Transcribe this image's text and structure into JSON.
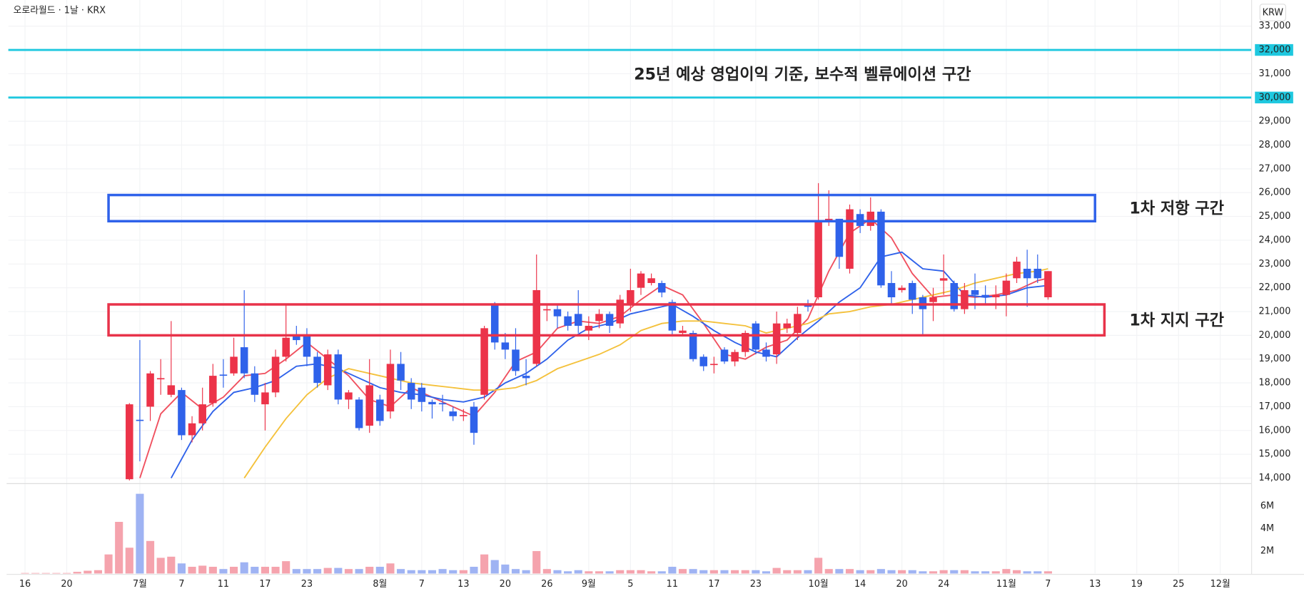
{
  "chart_data": {
    "type": "candlestick",
    "title": "오로라월드 · 1날 · KRX",
    "currency": "KRW",
    "up_color": "#ec3349",
    "down_color": "#2f62ea",
    "volume_up_color": "#f5a3ad",
    "volume_down_color": "#9fb3f3",
    "grid": true,
    "xlim": [
      -1.6,
      117.5
    ],
    "xticks": [
      {
        "value": 0,
        "label": "16"
      },
      {
        "value": 4,
        "label": "20"
      },
      {
        "value": 11,
        "label": "7월"
      },
      {
        "value": 15,
        "label": "7"
      },
      {
        "value": 19,
        "label": "11"
      },
      {
        "value": 23,
        "label": "17"
      },
      {
        "value": 27,
        "label": "23"
      },
      {
        "value": 34,
        "label": "8월"
      },
      {
        "value": 38,
        "label": "7"
      },
      {
        "value": 42,
        "label": "13"
      },
      {
        "value": 46,
        "label": "20"
      },
      {
        "value": 50,
        "label": "26"
      },
      {
        "value": 54,
        "label": "9월"
      },
      {
        "value": 58,
        "label": "5"
      },
      {
        "value": 62,
        "label": "11"
      },
      {
        "value": 66,
        "label": "17"
      },
      {
        "value": 70,
        "label": "23"
      },
      {
        "value": 76,
        "label": "10월"
      },
      {
        "value": 80,
        "label": "14"
      },
      {
        "value": 84,
        "label": "20"
      },
      {
        "value": 88,
        "label": "24"
      },
      {
        "value": 94,
        "label": "11월"
      },
      {
        "value": 98,
        "label": "7"
      },
      {
        "value": 102.5,
        "label": "13"
      },
      {
        "value": 106.5,
        "label": "19"
      },
      {
        "value": 110.5,
        "label": "25"
      },
      {
        "value": 114.5,
        "label": "12월"
      }
    ],
    "ylim": [
      13800,
      34100
    ],
    "yticks": [
      {
        "value": 14000,
        "label": "14,000"
      },
      {
        "value": 15000,
        "label": "15,000"
      },
      {
        "value": 16000,
        "label": "16,000"
      },
      {
        "value": 17000,
        "label": "17,000"
      },
      {
        "value": 18000,
        "label": "18,000"
      },
      {
        "value": 19000,
        "label": "19,000"
      },
      {
        "value": 20000,
        "label": "20,000"
      },
      {
        "value": 21000,
        "label": "21,000"
      },
      {
        "value": 22000,
        "label": "22,000"
      },
      {
        "value": 23000,
        "label": "23,000"
      },
      {
        "value": 24000,
        "label": "24,000"
      },
      {
        "value": 25000,
        "label": "25,000"
      },
      {
        "value": 26000,
        "label": "26,000"
      },
      {
        "value": 27000,
        "label": "27,000"
      },
      {
        "value": 28000,
        "label": "28,000"
      },
      {
        "value": 29000,
        "label": "29,000"
      },
      {
        "value": 31000,
        "label": "31,000"
      },
      {
        "value": 33000,
        "label": "33,000"
      }
    ],
    "candles": {
      "x": [
        10,
        11,
        12,
        13,
        14,
        15,
        16,
        17,
        18,
        19,
        20,
        21,
        22,
        23,
        24,
        25,
        26,
        27,
        28,
        29,
        30,
        31,
        32,
        33,
        34,
        35,
        36,
        37,
        38,
        39,
        40,
        41,
        42,
        43,
        44,
        45,
        46,
        47,
        48,
        49,
        50,
        51,
        52,
        53,
        54,
        55,
        56,
        57,
        58,
        59,
        60,
        61,
        62,
        63,
        64,
        65,
        66,
        67,
        68,
        69,
        70,
        71,
        72,
        73,
        74,
        75,
        76,
        77,
        78,
        79,
        80,
        81,
        82,
        83,
        84,
        85,
        86,
        87,
        88,
        89,
        90,
        91,
        92,
        93,
        94,
        95,
        96,
        97,
        98
      ],
      "open": [
        13950,
        16450,
        17000,
        18150,
        17500,
        17700,
        15800,
        16300,
        17150,
        18350,
        18400,
        19500,
        18400,
        17100,
        17600,
        19100,
        20000,
        20000,
        19100,
        17900,
        19200,
        17300,
        17300,
        16200,
        17300,
        16800,
        18800,
        18000,
        17800,
        17200,
        17150,
        16800,
        16600,
        17000,
        17500,
        21300,
        19700,
        19400,
        18300,
        18800,
        21050,
        21100,
        20800,
        20900,
        20200,
        20600,
        20900,
        20500,
        21300,
        22000,
        22200,
        22200,
        21400,
        20100,
        20100,
        19100,
        18750,
        19400,
        18900,
        19300,
        20500,
        19400,
        19200,
        20300,
        20100,
        21300,
        21600,
        24800,
        24900,
        22800,
        25100,
        24600,
        25200,
        22200,
        21900,
        22200,
        21600,
        21400,
        22300,
        22200,
        21100,
        21900,
        21700,
        21600,
        21700,
        22400,
        22800,
        22800,
        21600
      ],
      "high": [
        17150,
        19800,
        18500,
        19000,
        20600,
        17800,
        16600,
        17800,
        18800,
        19000,
        19900,
        21900,
        18700,
        18000,
        19400,
        21300,
        20400,
        20300,
        19300,
        19400,
        19400,
        17700,
        17400,
        19000,
        17500,
        19400,
        19300,
        18200,
        18000,
        17300,
        17500,
        17000,
        16900,
        17200,
        20400,
        21400,
        20100,
        20300,
        19000,
        23400,
        21300,
        21300,
        21000,
        21900,
        20800,
        21100,
        21000,
        21700,
        22800,
        22700,
        22600,
        22300,
        21500,
        20400,
        20200,
        19200,
        19100,
        19500,
        19400,
        20200,
        20600,
        19700,
        21000,
        20700,
        21200,
        21500,
        26400,
        26100,
        24900,
        25500,
        25300,
        25800,
        25300,
        22700,
        22100,
        22300,
        21700,
        22000,
        23400,
        22300,
        22200,
        22600,
        22100,
        22100,
        22600,
        23300,
        23600,
        23400,
        22700
      ],
      "low": [
        13900,
        14700,
        16400,
        17500,
        17400,
        15600,
        15500,
        16000,
        17000,
        17800,
        18300,
        18200,
        17200,
        16000,
        17400,
        18900,
        19600,
        18700,
        17800,
        17700,
        17100,
        16900,
        16000,
        15900,
        16200,
        16500,
        17700,
        16900,
        16800,
        16500,
        16800,
        16400,
        16400,
        15400,
        17300,
        19400,
        19000,
        18300,
        17900,
        18700,
        20600,
        20300,
        20200,
        20100,
        19800,
        20300,
        20100,
        20300,
        21000,
        21700,
        22100,
        21600,
        20000,
        20000,
        18900,
        18500,
        18400,
        18800,
        18700,
        19100,
        19200,
        18900,
        18800,
        20100,
        19800,
        21000,
        21500,
        24600,
        22800,
        22600,
        24300,
        24400,
        22000,
        21300,
        21800,
        20900,
        20000,
        20600,
        21700,
        21000,
        20900,
        21100,
        21300,
        21100,
        20800,
        22200,
        21200,
        22200,
        21500
      ],
      "close": [
        17100,
        16400,
        18400,
        18200,
        17900,
        15800,
        16300,
        17100,
        18300,
        18300,
        19100,
        18400,
        17500,
        17600,
        19100,
        19900,
        19800,
        19100,
        18000,
        19200,
        17300,
        17600,
        16100,
        17900,
        16400,
        18800,
        18100,
        17300,
        17200,
        17100,
        17100,
        16600,
        16650,
        15900,
        20300,
        19700,
        19400,
        18500,
        18200,
        21900,
        21100,
        20800,
        20400,
        20400,
        20400,
        20900,
        20400,
        21500,
        21900,
        22600,
        22400,
        21800,
        20200,
        20200,
        19000,
        18700,
        18800,
        18900,
        19300,
        20100,
        19400,
        19100,
        20500,
        20500,
        20900,
        21200,
        24800,
        24900,
        23300,
        25300,
        24600,
        25200,
        22100,
        21600,
        22000,
        21500,
        21100,
        21600,
        22400,
        21100,
        21900,
        21700,
        21600,
        21700,
        22300,
        23100,
        22400,
        22400,
        22700
      ]
    },
    "ma_lines": [
      {
        "color": "#f0505f",
        "x": [
          11,
          13,
          15,
          17,
          19,
          21,
          23,
          25,
          27,
          29,
          31,
          33,
          35,
          37,
          39,
          41,
          43,
          45,
          47,
          49,
          51,
          53,
          55,
          57,
          59,
          61,
          63,
          65,
          67,
          69,
          71,
          73,
          75,
          77,
          79,
          81,
          83,
          85,
          87,
          89,
          91,
          93,
          95,
          97,
          98
        ],
        "values": [
          14000,
          16700,
          17600,
          16900,
          17400,
          18300,
          18400,
          19000,
          19700,
          19000,
          18300,
          17300,
          17000,
          17800,
          17400,
          17000,
          16600,
          17600,
          18900,
          19300,
          20300,
          20600,
          20500,
          20800,
          21500,
          22100,
          21700,
          20500,
          19200,
          19000,
          19500,
          19800,
          20700,
          22700,
          24300,
          24900,
          24100,
          22600,
          21600,
          21700,
          21600,
          21700,
          21900,
          22300,
          22400
        ]
      },
      {
        "color": "#2f62ea",
        "x": [
          14,
          16,
          18,
          20,
          22,
          24,
          26,
          28,
          30,
          32,
          34,
          36,
          38,
          40,
          42,
          44,
          46,
          48,
          50,
          52,
          54,
          56,
          58,
          60,
          62,
          64,
          66,
          68,
          70,
          72,
          74,
          76,
          78,
          80,
          82,
          84,
          86,
          88,
          90,
          92,
          94,
          96,
          98
        ],
        "values": [
          14000,
          15600,
          16800,
          17600,
          17800,
          18100,
          18700,
          18800,
          18600,
          18200,
          17800,
          17600,
          17500,
          17300,
          17200,
          17400,
          18000,
          18400,
          19000,
          19800,
          20300,
          20500,
          20900,
          21100,
          21300,
          20800,
          20200,
          19700,
          19300,
          19100,
          19900,
          20600,
          21400,
          22000,
          23300,
          23500,
          22800,
          22700,
          21700,
          21600,
          21700,
          22000,
          22100
        ]
      },
      {
        "color": "#f4c13b",
        "x": [
          21,
          23,
          25,
          27,
          29,
          31,
          33,
          35,
          37,
          39,
          41,
          43,
          45,
          47,
          49,
          51,
          53,
          55,
          57,
          59,
          61,
          63,
          65,
          67,
          69,
          71,
          73,
          75,
          77,
          79,
          81,
          83,
          85,
          87,
          89,
          91,
          93,
          95,
          97,
          98
        ],
        "values": [
          14000,
          15300,
          16500,
          17500,
          18200,
          18600,
          18400,
          18200,
          18000,
          17900,
          17800,
          17700,
          17700,
          17800,
          18100,
          18600,
          18900,
          19200,
          19600,
          20200,
          20500,
          20600,
          20600,
          20500,
          20400,
          20100,
          20300,
          20500,
          20900,
          21000,
          21200,
          21300,
          21500,
          21700,
          21900,
          22200,
          22400,
          22600,
          22700,
          22800
        ]
      }
    ],
    "hlines": [
      {
        "value": 32000,
        "label": "32,000",
        "color": "#1ec8df"
      },
      {
        "value": 30000,
        "label": "30,000",
        "color": "#1ec8df"
      }
    ],
    "annotation": {
      "text": "25년 예상 영업이익 기준, 보수적 벨류에이션 구간",
      "color": "#1ec0d8"
    },
    "zones": [
      {
        "label": "1차 저항 구간",
        "color": "#2f62ea",
        "xlim": [
          8,
          102.5
        ],
        "ylim": [
          24800,
          25900
        ]
      },
      {
        "label": "1차 지지 구간",
        "color": "#e8334a",
        "xlim": [
          8,
          103.4
        ],
        "ylim": [
          20000,
          21300
        ]
      }
    ],
    "volume": {
      "ylim": [
        0,
        7930000
      ],
      "yticks": [
        {
          "value": 2000000,
          "label": "2M"
        },
        {
          "value": 4000000,
          "label": "4M"
        },
        {
          "value": 6000000,
          "label": "6M"
        }
      ],
      "x": [
        0,
        1,
        2,
        3,
        4,
        5,
        6,
        7,
        8,
        9,
        10,
        11,
        12,
        13,
        14,
        15,
        16,
        17,
        18,
        19,
        20,
        21,
        22,
        23,
        24,
        25,
        26,
        27,
        28,
        29,
        30,
        31,
        32,
        33,
        34,
        35,
        36,
        37,
        38,
        39,
        40,
        41,
        42,
        43,
        44,
        45,
        46,
        47,
        48,
        49,
        50,
        51,
        52,
        53,
        54,
        55,
        56,
        57,
        58,
        59,
        60,
        61,
        62,
        63,
        64,
        65,
        66,
        67,
        68,
        69,
        70,
        71,
        72,
        73,
        74,
        75,
        76,
        77,
        78,
        79,
        80,
        81,
        82,
        83,
        84,
        85,
        86,
        87,
        88,
        89,
        90,
        91,
        92,
        93,
        94,
        95,
        96,
        97,
        98
      ],
      "values": [
        50000,
        50000,
        50000,
        50000,
        50000,
        150000,
        250000,
        300000,
        1700000,
        4600000,
        2300000,
        7100000,
        2900000,
        1400000,
        1500000,
        900000,
        600000,
        700000,
        600000,
        400000,
        600000,
        1000000,
        600000,
        600000,
        600000,
        1100000,
        400000,
        400000,
        400000,
        500000,
        500000,
        400000,
        400000,
        600000,
        600000,
        900000,
        400000,
        300000,
        300000,
        300000,
        400000,
        300000,
        300000,
        600000,
        1700000,
        1200000,
        800000,
        400000,
        300000,
        2000000,
        400000,
        300000,
        200000,
        300000,
        200000,
        200000,
        200000,
        300000,
        300000,
        300000,
        200000,
        200000,
        600000,
        400000,
        400000,
        300000,
        300000,
        300000,
        300000,
        300000,
        300000,
        200000,
        500000,
        300000,
        300000,
        300000,
        1400000,
        400000,
        400000,
        400000,
        300000,
        300000,
        400000,
        300000,
        300000,
        300000,
        200000,
        200000,
        300000,
        300000,
        300000,
        200000,
        200000,
        200000,
        400000,
        300000,
        200000,
        200000,
        200000
      ]
    }
  }
}
